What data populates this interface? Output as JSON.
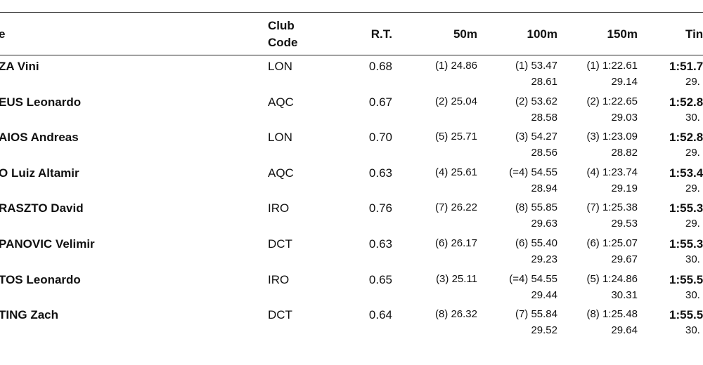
{
  "table": {
    "headers": {
      "name": "e",
      "club": [
        "Club",
        "Code"
      ],
      "rt": "R.T.",
      "s50": "50m",
      "s100": "100m",
      "s150": "150m",
      "time": "Tin"
    },
    "rows": [
      {
        "name": "ZA Vini",
        "club": "LON",
        "rt": "0.68",
        "s50": "(1) 24.86",
        "s100": "(1) 53.47",
        "s100_split": "28.61",
        "s150": "(1) 1:22.61",
        "s150_split": "29.14",
        "time": "1:51.7",
        "time_split": "29."
      },
      {
        "name": "EUS Leonardo",
        "club": "AQC",
        "rt": "0.67",
        "s50": "(2) 25.04",
        "s100": "(2) 53.62",
        "s100_split": "28.58",
        "s150": "(2) 1:22.65",
        "s150_split": "29.03",
        "time": "1:52.8",
        "time_split": "30."
      },
      {
        "name": "AIOS Andreas",
        "club": "LON",
        "rt": "0.70",
        "s50": "(5) 25.71",
        "s100": "(3) 54.27",
        "s100_split": "28.56",
        "s150": "(3) 1:23.09",
        "s150_split": "28.82",
        "time": "1:52.8",
        "time_split": "29."
      },
      {
        "name": "O Luiz Altamir",
        "club": "AQC",
        "rt": "0.63",
        "s50": "(4) 25.61",
        "s100": "(=4) 54.55",
        "s100_split": "28.94",
        "s150": "(4) 1:23.74",
        "s150_split": "29.19",
        "time": "1:53.4",
        "time_split": "29."
      },
      {
        "name": "RASZTO David",
        "club": "IRO",
        "rt": "0.76",
        "s50": "(7) 26.22",
        "s100": "(8) 55.85",
        "s100_split": "29.63",
        "s150": "(7) 1:25.38",
        "s150_split": "29.53",
        "time": "1:55.3",
        "time_split": "29."
      },
      {
        "name": "PANOVIC Velimir",
        "club": "DCT",
        "rt": "0.63",
        "s50": "(6) 26.17",
        "s100": "(6) 55.40",
        "s100_split": "29.23",
        "s150": "(6) 1:25.07",
        "s150_split": "29.67",
        "time": "1:55.3",
        "time_split": "30."
      },
      {
        "name": "TOS Leonardo",
        "club": "IRO",
        "rt": "0.65",
        "s50": "(3) 25.11",
        "s100": "(=4) 54.55",
        "s100_split": "29.44",
        "s150": "(5) 1:24.86",
        "s150_split": "30.31",
        "time": "1:55.5",
        "time_split": "30."
      },
      {
        "name": "TING Zach",
        "club": "DCT",
        "rt": "0.64",
        "s50": "(8) 26.32",
        "s100": "(7) 55.84",
        "s100_split": "29.52",
        "s150": "(8) 1:25.48",
        "s150_split": "29.64",
        "time": "1:55.5",
        "time_split": "30."
      }
    ]
  }
}
